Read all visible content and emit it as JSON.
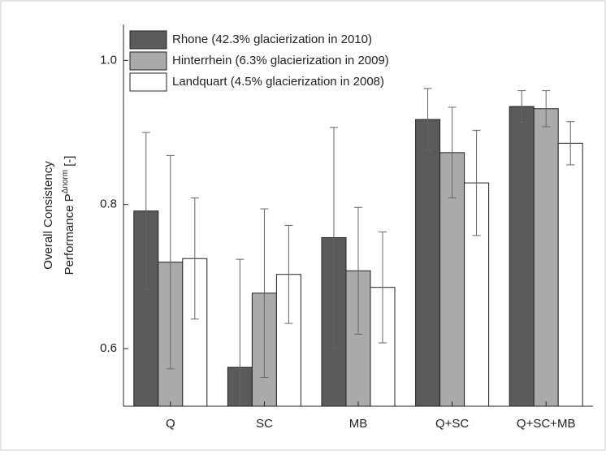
{
  "chart_data": {
    "type": "bar",
    "y_label_line1": "Overall Consistency",
    "y_label_line2": {
      "prefix": "Performance P",
      "superscript": "Δnorm",
      "suffix": "[-]"
    },
    "categories": [
      "Q",
      "SC",
      "MB",
      "Q+SC",
      "Q+SC+MB"
    ],
    "series": [
      {
        "name": "Rhone (42.3% glacierization in 2010)",
        "color": "#5a5a5a",
        "values": [
          0.791,
          0.574,
          0.754,
          0.918,
          0.936
        ],
        "error": [
          0.109,
          0.15,
          0.153,
          0.043,
          0.022
        ]
      },
      {
        "name": "Hinterrhein (6.3% glacierization in 2009)",
        "color": "#aaaaaa",
        "values": [
          0.72,
          0.677,
          0.708,
          0.872,
          0.933
        ],
        "error": [
          0.148,
          0.117,
          0.088,
          0.063,
          0.025
        ]
      },
      {
        "name": "Landquart (4.5% glacierization in 2008)",
        "color": "#ffffff",
        "values": [
          0.725,
          0.703,
          0.685,
          0.83,
          0.885
        ],
        "error": [
          0.084,
          0.068,
          0.077,
          0.073,
          0.03
        ]
      }
    ],
    "ylim": [
      0.52,
      1.05
    ],
    "yticks": [
      0.6,
      0.8,
      {
        "value": 1.0,
        "label": "1.0"
      }
    ],
    "legend": "upper-left"
  }
}
